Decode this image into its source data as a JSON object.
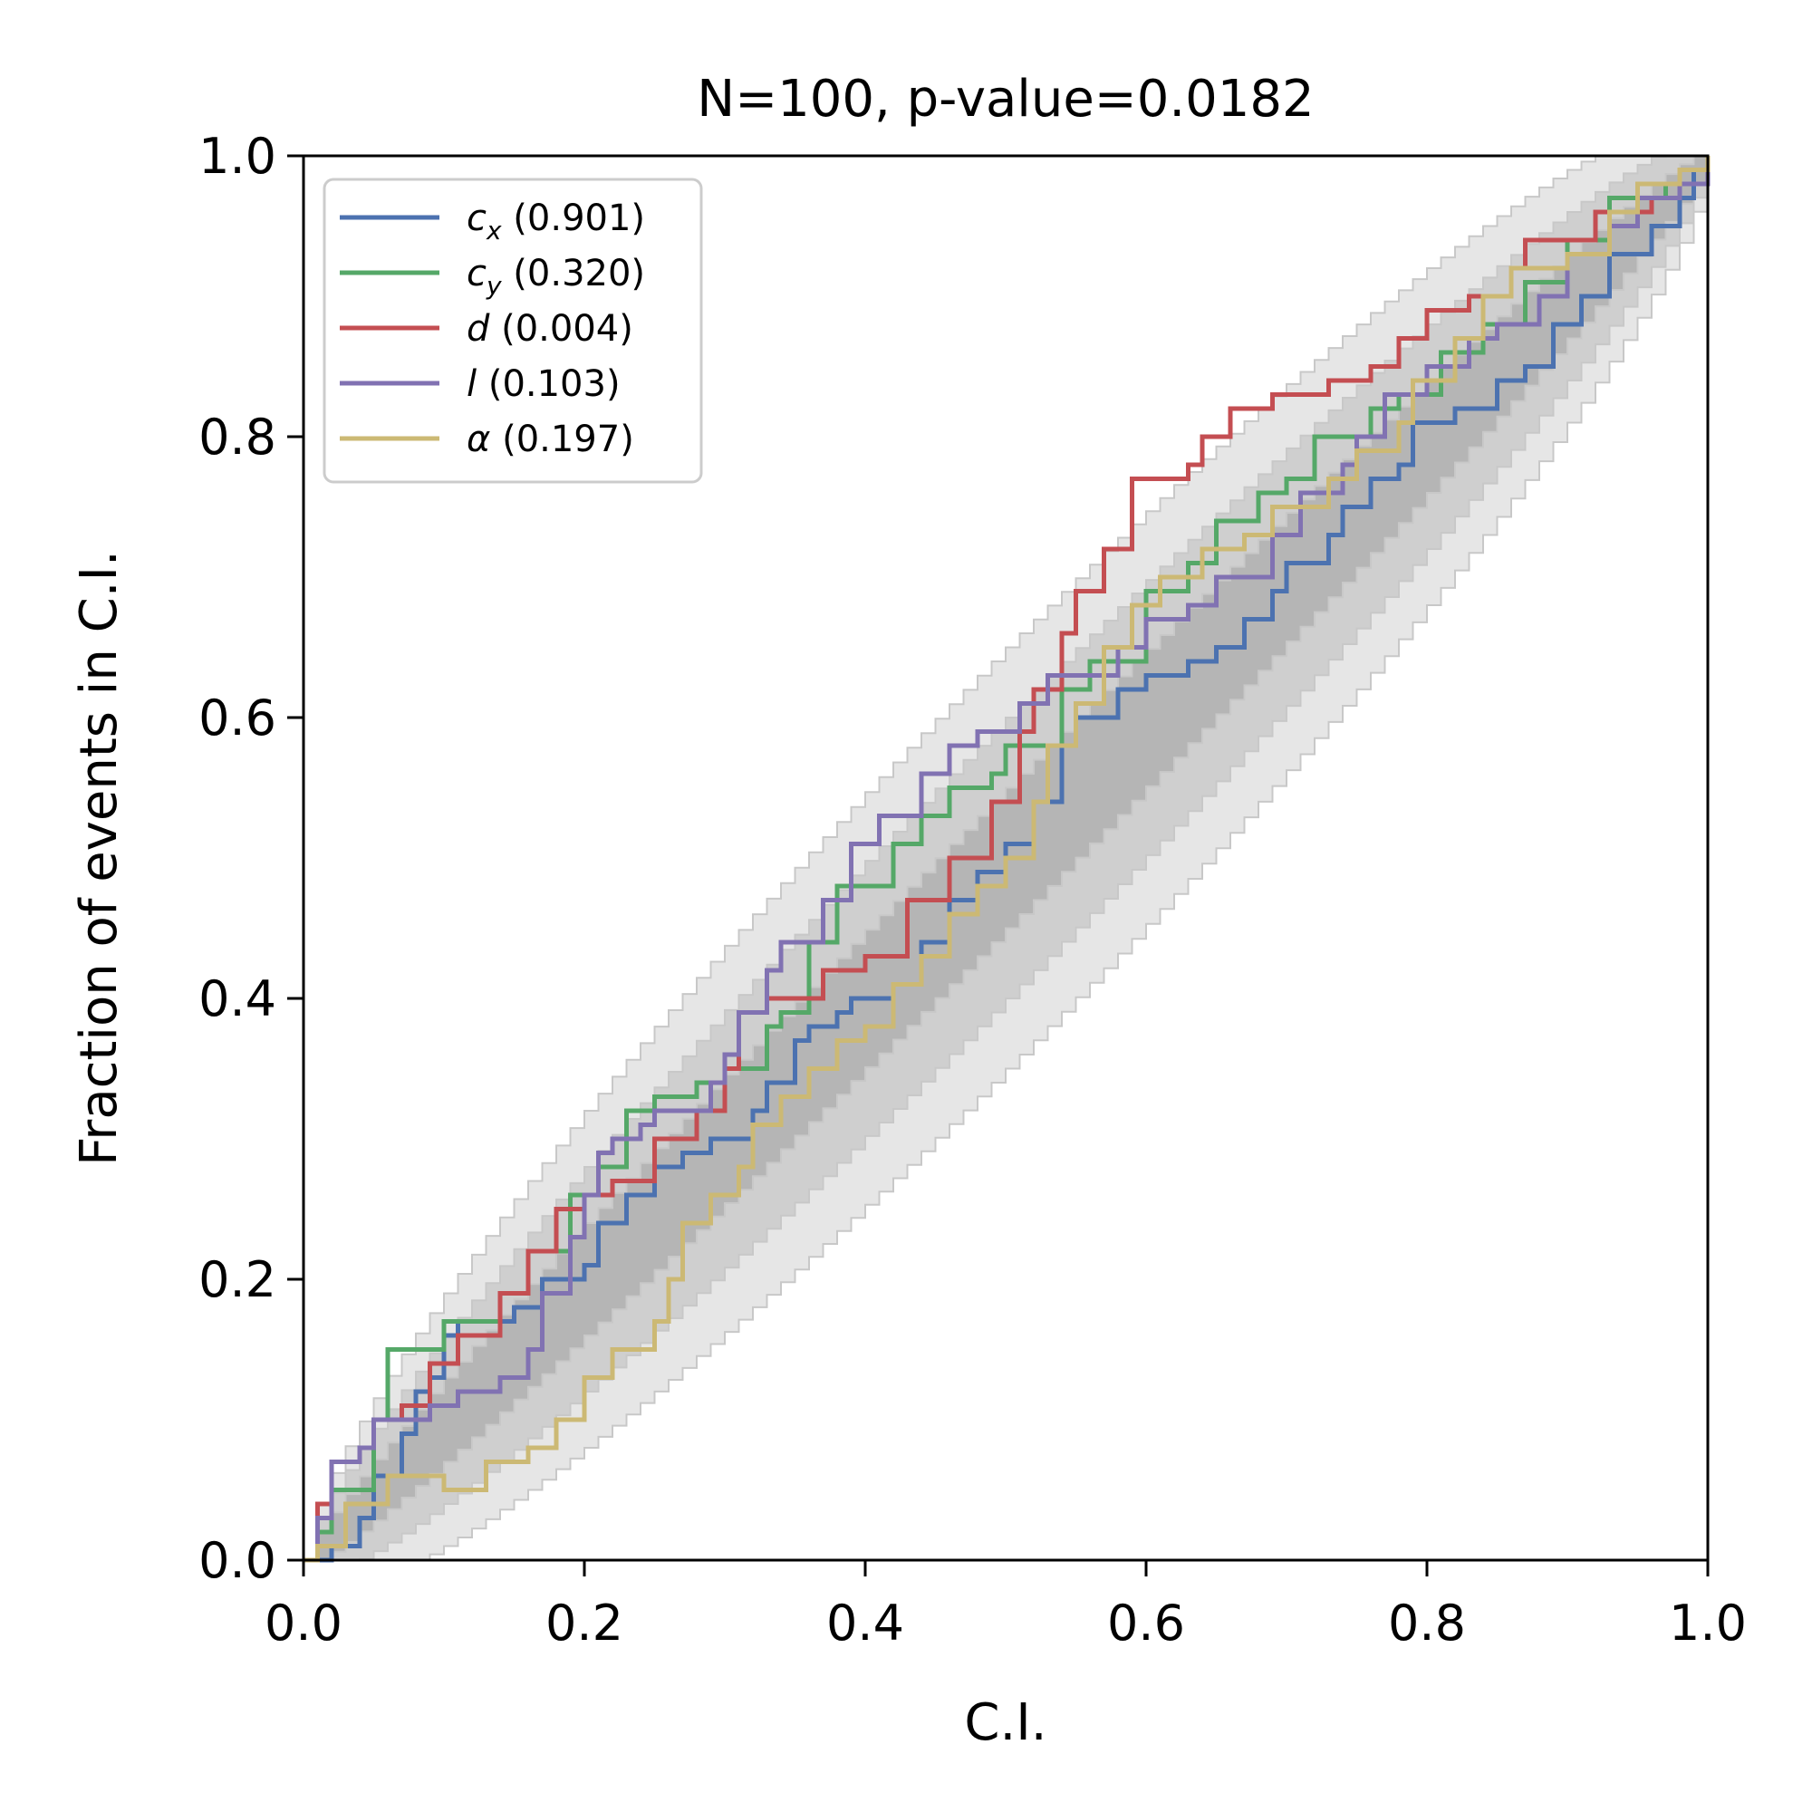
{
  "chart_data": {
    "type": "line",
    "title": "N=100, p-value=0.0182",
    "xlabel": "C.I.",
    "ylabel": "Fraction of events in C.I.",
    "xlim": [
      0,
      1
    ],
    "ylim": [
      0,
      1
    ],
    "x_ticks": [
      "0.0",
      "0.2",
      "0.4",
      "0.6",
      "0.8",
      "1.0"
    ],
    "y_ticks": [
      "0.0",
      "0.2",
      "0.4",
      "0.6",
      "0.8",
      "1.0"
    ],
    "grid": false,
    "legend_position": "top-left",
    "confidence_bands": {
      "levels": [
        "1σ",
        "2σ",
        "3σ"
      ],
      "colors": [
        "#b5b5b5",
        "#cfcfcf",
        "#e6e6e6"
      ],
      "N": 100
    },
    "series": [
      {
        "name": "c_x",
        "symbol": "c",
        "subscript": "x",
        "value": "(0.901)",
        "color": "#4c72b0",
        "points": [
          [
            0,
            0
          ],
          [
            0.02,
            0
          ],
          [
            0.02,
            0.01
          ],
          [
            0.04,
            0.03
          ],
          [
            0.05,
            0.06
          ],
          [
            0.07,
            0.09
          ],
          [
            0.08,
            0.12
          ],
          [
            0.09,
            0.13
          ],
          [
            0.1,
            0.16
          ],
          [
            0.11,
            0.17
          ],
          [
            0.15,
            0.18
          ],
          [
            0.17,
            0.2
          ],
          [
            0.2,
            0.21
          ],
          [
            0.21,
            0.24
          ],
          [
            0.23,
            0.26
          ],
          [
            0.25,
            0.28
          ],
          [
            0.27,
            0.29
          ],
          [
            0.29,
            0.3
          ],
          [
            0.32,
            0.32
          ],
          [
            0.33,
            0.34
          ],
          [
            0.35,
            0.37
          ],
          [
            0.36,
            0.38
          ],
          [
            0.38,
            0.39
          ],
          [
            0.39,
            0.4
          ],
          [
            0.42,
            0.41
          ],
          [
            0.44,
            0.44
          ],
          [
            0.46,
            0.47
          ],
          [
            0.48,
            0.49
          ],
          [
            0.5,
            0.51
          ],
          [
            0.52,
            0.54
          ],
          [
            0.54,
            0.58
          ],
          [
            0.55,
            0.6
          ],
          [
            0.58,
            0.62
          ],
          [
            0.6,
            0.63
          ],
          [
            0.63,
            0.64
          ],
          [
            0.65,
            0.65
          ],
          [
            0.67,
            0.67
          ],
          [
            0.69,
            0.69
          ],
          [
            0.7,
            0.71
          ],
          [
            0.73,
            0.73
          ],
          [
            0.74,
            0.75
          ],
          [
            0.76,
            0.77
          ],
          [
            0.78,
            0.78
          ],
          [
            0.79,
            0.81
          ],
          [
            0.82,
            0.82
          ],
          [
            0.85,
            0.84
          ],
          [
            0.87,
            0.85
          ],
          [
            0.89,
            0.88
          ],
          [
            0.91,
            0.9
          ],
          [
            0.93,
            0.93
          ],
          [
            0.96,
            0.95
          ],
          [
            0.98,
            0.97
          ],
          [
            0.99,
            0.99
          ],
          [
            1,
            1
          ]
        ]
      },
      {
        "name": "c_y",
        "symbol": "c",
        "subscript": "y",
        "value": "(0.320)",
        "color": "#55a868",
        "points": [
          [
            0,
            0
          ],
          [
            0.01,
            0.02
          ],
          [
            0.02,
            0.05
          ],
          [
            0.05,
            0.1
          ],
          [
            0.06,
            0.15
          ],
          [
            0.1,
            0.17
          ],
          [
            0.14,
            0.19
          ],
          [
            0.16,
            0.22
          ],
          [
            0.19,
            0.26
          ],
          [
            0.21,
            0.28
          ],
          [
            0.23,
            0.32
          ],
          [
            0.25,
            0.33
          ],
          [
            0.28,
            0.34
          ],
          [
            0.3,
            0.35
          ],
          [
            0.33,
            0.38
          ],
          [
            0.34,
            0.39
          ],
          [
            0.36,
            0.44
          ],
          [
            0.38,
            0.48
          ],
          [
            0.42,
            0.51
          ],
          [
            0.44,
            0.53
          ],
          [
            0.46,
            0.55
          ],
          [
            0.49,
            0.56
          ],
          [
            0.5,
            0.58
          ],
          [
            0.54,
            0.62
          ],
          [
            0.56,
            0.64
          ],
          [
            0.6,
            0.69
          ],
          [
            0.63,
            0.71
          ],
          [
            0.65,
            0.74
          ],
          [
            0.68,
            0.76
          ],
          [
            0.7,
            0.77
          ],
          [
            0.72,
            0.8
          ],
          [
            0.76,
            0.82
          ],
          [
            0.78,
            0.83
          ],
          [
            0.81,
            0.86
          ],
          [
            0.84,
            0.88
          ],
          [
            0.87,
            0.91
          ],
          [
            0.9,
            0.94
          ],
          [
            0.93,
            0.97
          ],
          [
            0.97,
            0.98
          ],
          [
            1,
            1
          ]
        ]
      },
      {
        "name": "d",
        "symbol": "d",
        "subscript": "",
        "value": "(0.004)",
        "color": "#c44e52",
        "points": [
          [
            0,
            0
          ],
          [
            0.01,
            0.04
          ],
          [
            0.02,
            0.07
          ],
          [
            0.04,
            0.08
          ],
          [
            0.05,
            0.1
          ],
          [
            0.07,
            0.11
          ],
          [
            0.09,
            0.14
          ],
          [
            0.11,
            0.16
          ],
          [
            0.14,
            0.19
          ],
          [
            0.16,
            0.22
          ],
          [
            0.18,
            0.25
          ],
          [
            0.2,
            0.26
          ],
          [
            0.22,
            0.27
          ],
          [
            0.25,
            0.3
          ],
          [
            0.28,
            0.32
          ],
          [
            0.3,
            0.35
          ],
          [
            0.31,
            0.39
          ],
          [
            0.33,
            0.4
          ],
          [
            0.37,
            0.42
          ],
          [
            0.4,
            0.43
          ],
          [
            0.43,
            0.47
          ],
          [
            0.46,
            0.5
          ],
          [
            0.49,
            0.54
          ],
          [
            0.51,
            0.59
          ],
          [
            0.52,
            0.62
          ],
          [
            0.54,
            0.66
          ],
          [
            0.55,
            0.69
          ],
          [
            0.57,
            0.72
          ],
          [
            0.59,
            0.77
          ],
          [
            0.63,
            0.78
          ],
          [
            0.64,
            0.8
          ],
          [
            0.66,
            0.82
          ],
          [
            0.69,
            0.83
          ],
          [
            0.73,
            0.84
          ],
          [
            0.76,
            0.85
          ],
          [
            0.78,
            0.87
          ],
          [
            0.8,
            0.89
          ],
          [
            0.83,
            0.9
          ],
          [
            0.86,
            0.92
          ],
          [
            0.87,
            0.94
          ],
          [
            0.92,
            0.96
          ],
          [
            0.96,
            0.97
          ],
          [
            0.98,
            0.99
          ],
          [
            1,
            1
          ]
        ]
      },
      {
        "name": "l",
        "symbol": "l",
        "subscript": "",
        "value": "(0.103)",
        "color": "#8172b2",
        "points": [
          [
            0,
            0
          ],
          [
            0.01,
            0.03
          ],
          [
            0.02,
            0.07
          ],
          [
            0.04,
            0.08
          ],
          [
            0.05,
            0.1
          ],
          [
            0.09,
            0.11
          ],
          [
            0.11,
            0.12
          ],
          [
            0.14,
            0.13
          ],
          [
            0.16,
            0.15
          ],
          [
            0.17,
            0.19
          ],
          [
            0.19,
            0.23
          ],
          [
            0.2,
            0.26
          ],
          [
            0.21,
            0.29
          ],
          [
            0.22,
            0.3
          ],
          [
            0.24,
            0.31
          ],
          [
            0.25,
            0.32
          ],
          [
            0.29,
            0.34
          ],
          [
            0.3,
            0.36
          ],
          [
            0.31,
            0.39
          ],
          [
            0.33,
            0.42
          ],
          [
            0.34,
            0.44
          ],
          [
            0.37,
            0.47
          ],
          [
            0.39,
            0.51
          ],
          [
            0.41,
            0.53
          ],
          [
            0.44,
            0.56
          ],
          [
            0.46,
            0.58
          ],
          [
            0.48,
            0.59
          ],
          [
            0.51,
            0.61
          ],
          [
            0.53,
            0.63
          ],
          [
            0.58,
            0.65
          ],
          [
            0.6,
            0.67
          ],
          [
            0.63,
            0.68
          ],
          [
            0.65,
            0.7
          ],
          [
            0.69,
            0.73
          ],
          [
            0.71,
            0.76
          ],
          [
            0.74,
            0.78
          ],
          [
            0.75,
            0.8
          ],
          [
            0.77,
            0.83
          ],
          [
            0.8,
            0.85
          ],
          [
            0.83,
            0.87
          ],
          [
            0.85,
            0.88
          ],
          [
            0.88,
            0.9
          ],
          [
            0.9,
            0.93
          ],
          [
            0.93,
            0.95
          ],
          [
            0.95,
            0.97
          ],
          [
            0.98,
            0.98
          ],
          [
            1,
            1
          ]
        ]
      },
      {
        "name": "α",
        "symbol": "α",
        "subscript": "",
        "value": "(0.197)",
        "color": "#ccb974",
        "points": [
          [
            0,
            0
          ],
          [
            0.01,
            0.01
          ],
          [
            0.03,
            0.04
          ],
          [
            0.06,
            0.06
          ],
          [
            0.1,
            0.05
          ],
          [
            0.13,
            0.07
          ],
          [
            0.16,
            0.08
          ],
          [
            0.18,
            0.1
          ],
          [
            0.2,
            0.13
          ],
          [
            0.22,
            0.15
          ],
          [
            0.25,
            0.17
          ],
          [
            0.26,
            0.2
          ],
          [
            0.27,
            0.24
          ],
          [
            0.29,
            0.26
          ],
          [
            0.31,
            0.28
          ],
          [
            0.32,
            0.31
          ],
          [
            0.34,
            0.33
          ],
          [
            0.36,
            0.35
          ],
          [
            0.38,
            0.37
          ],
          [
            0.4,
            0.38
          ],
          [
            0.42,
            0.41
          ],
          [
            0.44,
            0.43
          ],
          [
            0.46,
            0.46
          ],
          [
            0.48,
            0.48
          ],
          [
            0.5,
            0.5
          ],
          [
            0.52,
            0.54
          ],
          [
            0.53,
            0.58
          ],
          [
            0.55,
            0.61
          ],
          [
            0.57,
            0.65
          ],
          [
            0.59,
            0.68
          ],
          [
            0.61,
            0.7
          ],
          [
            0.64,
            0.72
          ],
          [
            0.67,
            0.73
          ],
          [
            0.69,
            0.75
          ],
          [
            0.73,
            0.77
          ],
          [
            0.75,
            0.79
          ],
          [
            0.78,
            0.81
          ],
          [
            0.79,
            0.84
          ],
          [
            0.82,
            0.87
          ],
          [
            0.84,
            0.9
          ],
          [
            0.86,
            0.92
          ],
          [
            0.9,
            0.93
          ],
          [
            0.93,
            0.96
          ],
          [
            0.95,
            0.98
          ],
          [
            0.98,
            0.99
          ],
          [
            1,
            1
          ]
        ]
      }
    ]
  }
}
